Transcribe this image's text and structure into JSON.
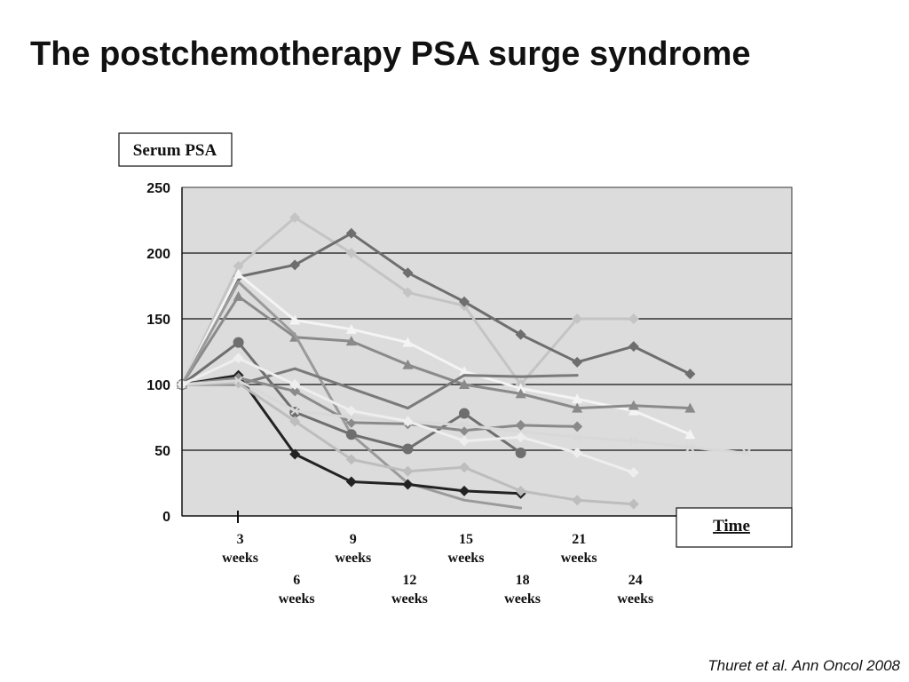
{
  "slide": {
    "title": "The postchemotherapy PSA surge syndrome",
    "citation": "Thuret et al. Ann Oncol 2008"
  },
  "chart_data": {
    "type": "line",
    "ylabel": "Serum PSA",
    "xlabel": "Time",
    "ylim": [
      0,
      250
    ],
    "yticks": [
      0,
      50,
      100,
      150,
      200,
      250
    ],
    "grid": true,
    "background": "#dcdcdc",
    "x_ticks": [
      {
        "week": 3,
        "line1": "3",
        "line2": "weeks"
      },
      {
        "week": 6,
        "line1": "6",
        "line2": "weeks"
      },
      {
        "week": 9,
        "line1": "9",
        "line2": "weeks"
      },
      {
        "week": 12,
        "line1": "12",
        "line2": "weeks"
      },
      {
        "week": 15,
        "line1": "15",
        "line2": "weeks"
      },
      {
        "week": 18,
        "line1": "18",
        "line2": "weeks"
      },
      {
        "week": 21,
        "line1": "21",
        "line2": "weeks"
      },
      {
        "week": 24,
        "line1": "24",
        "line2": "weeks"
      }
    ],
    "series": [
      {
        "color": "#c4c4c4",
        "marker": "diamond",
        "x": [
          0,
          3,
          6,
          9,
          12,
          15,
          18,
          21,
          24
        ],
        "y": [
          100,
          190,
          227,
          200,
          170,
          160,
          100,
          150,
          150
        ]
      },
      {
        "color": "#6e6e6e",
        "marker": "diamond",
        "x": [
          0,
          3,
          6,
          9,
          12,
          15,
          18,
          21,
          24,
          27
        ],
        "y": [
          100,
          182,
          191,
          215,
          185,
          163,
          138,
          117,
          129,
          108
        ]
      },
      {
        "color": "#f4f4f4",
        "marker": "triangle",
        "x": [
          0,
          3,
          6,
          9,
          12,
          15,
          18,
          21,
          24,
          27
        ],
        "y": [
          100,
          184,
          149,
          142,
          132,
          110,
          97,
          89,
          80,
          62
        ]
      },
      {
        "color": "#8a8a8a",
        "marker": "triangle",
        "x": [
          0,
          3,
          6,
          9,
          12,
          15,
          18,
          21,
          24,
          27
        ],
        "y": [
          100,
          167,
          136,
          133,
          115,
          100,
          93,
          82,
          84,
          82
        ]
      },
      {
        "color": "#9a9a9a",
        "marker": "none",
        "x": [
          0,
          3,
          6,
          9,
          12,
          15,
          18
        ],
        "y": [
          100,
          178,
          138,
          62,
          25,
          12,
          6
        ]
      },
      {
        "color": "#6e6e6e",
        "marker": "circle",
        "x": [
          0,
          3,
          6,
          9,
          12,
          15,
          18
        ],
        "y": [
          100,
          132,
          79,
          62,
          51,
          78,
          48
        ]
      },
      {
        "color": "#7a7a7a",
        "marker": "none",
        "x": [
          0,
          3,
          6,
          9,
          12,
          15,
          18,
          21
        ],
        "y": [
          100,
          100,
          112,
          97,
          82,
          107,
          106,
          107
        ]
      },
      {
        "color": "#222222",
        "marker": "diamond",
        "x": [
          0,
          3,
          6,
          9,
          12,
          15,
          18
        ],
        "y": [
          100,
          107,
          47,
          26,
          24,
          19,
          17
        ]
      },
      {
        "color": "#bdbdbd",
        "marker": "diamond",
        "x": [
          0,
          3,
          6,
          9,
          12,
          15,
          18,
          21,
          24
        ],
        "y": [
          100,
          101,
          72,
          43,
          34,
          37,
          19,
          12,
          9
        ]
      },
      {
        "color": "#8a8a8a",
        "marker": "diamond",
        "x": [
          0,
          3,
          6,
          9,
          12,
          15,
          18,
          21
        ],
        "y": [
          100,
          105,
          95,
          71,
          70,
          65,
          69,
          68
        ]
      },
      {
        "color": "#d8d8d8",
        "marker": "cross",
        "x": [
          0,
          3,
          6,
          9,
          12,
          15,
          18,
          21,
          24,
          27,
          30
        ],
        "y": [
          100,
          103,
          80,
          75,
          72,
          69,
          64,
          60,
          57,
          52,
          48
        ]
      },
      {
        "color": "#eeeeee",
        "marker": "diamond",
        "x": [
          0,
          3,
          6,
          9,
          12,
          15,
          18,
          21,
          24
        ],
        "y": [
          100,
          120,
          100,
          80,
          72,
          57,
          60,
          48,
          33
        ]
      }
    ]
  }
}
